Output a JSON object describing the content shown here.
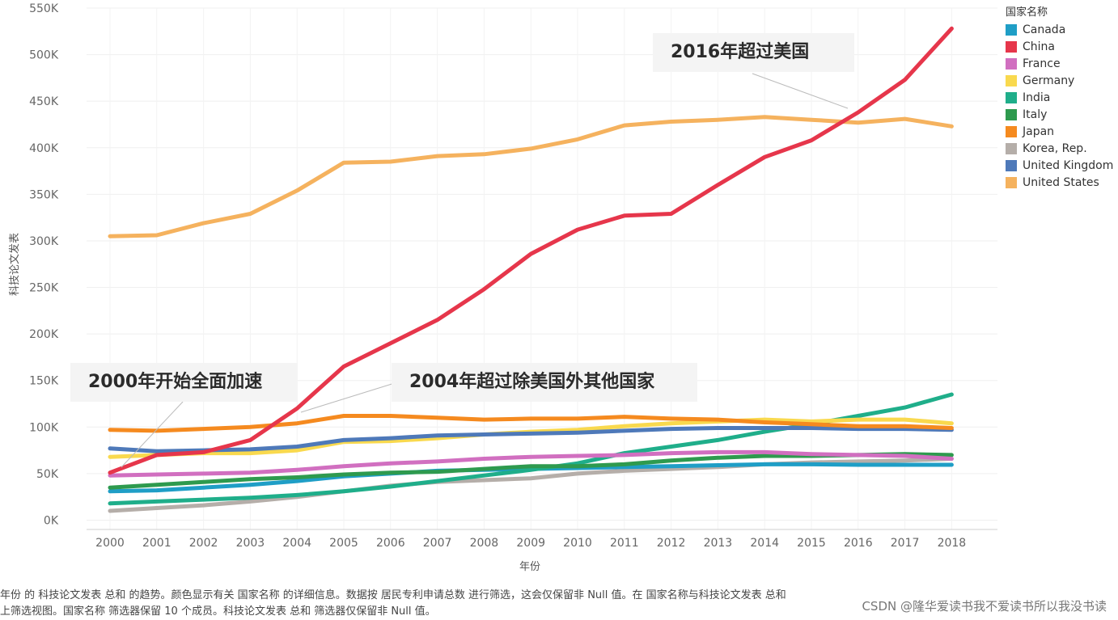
{
  "chart_data": {
    "type": "line",
    "xlabel": "年份",
    "ylabel": "科技论文发表",
    "ylim": [
      -10000,
      550000
    ],
    "yticks": [
      0,
      50000,
      100000,
      150000,
      200000,
      250000,
      300000,
      350000,
      400000,
      450000,
      500000,
      550000
    ],
    "ytick_labels": [
      "0K",
      "50K",
      "100K",
      "150K",
      "200K",
      "250K",
      "300K",
      "350K",
      "400K",
      "450K",
      "500K",
      "550K"
    ],
    "x": [
      "2000",
      "2001",
      "2002",
      "2003",
      "2004",
      "2005",
      "2006",
      "2007",
      "2008",
      "2009",
      "2010",
      "2011",
      "2012",
      "2013",
      "2014",
      "2015",
      "2016",
      "2017",
      "2018"
    ],
    "legend_title": "国家名称",
    "series": [
      {
        "name": "Canada",
        "color": "#1f9ec6",
        "values": [
          31000,
          32000,
          35000,
          38000,
          42000,
          47000,
          50000,
          53000,
          54000,
          55000,
          56000,
          57000,
          58000,
          59000,
          60000,
          60000,
          59500,
          59500,
          59500
        ]
      },
      {
        "name": "China",
        "color": "#e6364b",
        "values": [
          51000,
          70000,
          73000,
          86000,
          120000,
          165000,
          190000,
          215000,
          248000,
          286000,
          312000,
          327000,
          329000,
          360000,
          390000,
          408000,
          438000,
          473000,
          528000
        ]
      },
      {
        "name": "France",
        "color": "#d16fc0",
        "values": [
          48000,
          49000,
          50000,
          51000,
          54000,
          58000,
          61000,
          63000,
          66000,
          68000,
          69000,
          70000,
          72000,
          73000,
          73000,
          71000,
          70000,
          69000,
          66000
        ]
      },
      {
        "name": "Germany",
        "color": "#f9d94e",
        "values": [
          68000,
          70000,
          72000,
          72000,
          75000,
          84000,
          85000,
          88000,
          92000,
          95000,
          97000,
          101000,
          104000,
          106000,
          108000,
          106000,
          108000,
          108000,
          104000
        ]
      },
      {
        "name": "India",
        "color": "#1fae8a",
        "values": [
          18000,
          20000,
          22000,
          24000,
          27000,
          31000,
          36000,
          42000,
          48000,
          54000,
          61000,
          72000,
          79000,
          86000,
          95000,
          103000,
          112000,
          121000,
          135000
        ]
      },
      {
        "name": "Italy",
        "color": "#2e9a4e",
        "values": [
          35000,
          38000,
          41000,
          44000,
          46000,
          49000,
          51000,
          52000,
          55000,
          58000,
          58000,
          60000,
          64000,
          67000,
          69000,
          69000,
          70000,
          71000,
          70000
        ]
      },
      {
        "name": "Japan",
        "color": "#f58a1f",
        "values": [
          97000,
          96000,
          98000,
          100000,
          104000,
          112000,
          112000,
          110000,
          108000,
          109000,
          109000,
          111000,
          109000,
          108000,
          105000,
          103000,
          101000,
          101000,
          99000
        ]
      },
      {
        "name": "Korea, Rep.",
        "color": "#b5aea9",
        "values": [
          10000,
          13000,
          16000,
          20000,
          25000,
          31000,
          37000,
          41000,
          43000,
          45000,
          50000,
          53000,
          55000,
          57000,
          60000,
          62000,
          63000,
          64000,
          66000
        ]
      },
      {
        "name": "United Kingdom",
        "color": "#4e79b9",
        "values": [
          77000,
          74000,
          75000,
          76000,
          79000,
          86000,
          88000,
          91000,
          92000,
          93000,
          94000,
          96000,
          98000,
          99000,
          99000,
          99000,
          98000,
          98000,
          97000
        ]
      },
      {
        "name": "United States",
        "color": "#f5b25e",
        "values": [
          305000,
          306000,
          319000,
          329000,
          354000,
          384000,
          385000,
          391000,
          393000,
          399000,
          409000,
          424000,
          428000,
          430000,
          433000,
          430000,
          427000,
          431000,
          423000
        ]
      }
    ],
    "annotations": [
      {
        "text": "2016年超过美国"
      },
      {
        "text": "2000年开始全面加速"
      },
      {
        "text": "2004年超过除美国外其他国家"
      }
    ]
  },
  "footer": {
    "line1": "年份 的 科技论文发表 总和 的趋势。颜色显示有关 国家名称 的详细信息。数据按 居民专利申请总数 进行筛选，这会仅保留非 Null 值。在 国家名称与科技论文发表 总和",
    "line2": "上筛选视图。国家名称 筛选器保留 10 个成员。科技论文发表 总和 筛选器仅保留非 Null 值。"
  },
  "watermark": "CSDN @隆华爱读书我不爱读书所以我没书读"
}
